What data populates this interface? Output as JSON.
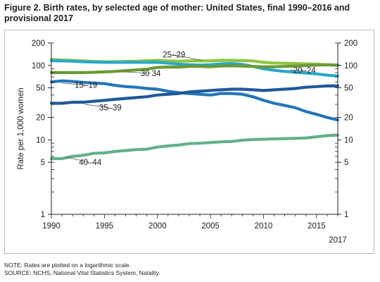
{
  "figure": {
    "title": "Figure 2. Birth rates, by selected age of mother: United States, final 1990–2016 and provisional 2017",
    "notes": [
      "NOTE: Rates are plotted on a logarithmic scale.",
      "SOURCE: NCHS, National Vital Statistics System, Natality."
    ]
  },
  "chart_data": {
    "type": "line",
    "title": "Figure 2. Birth rates, by selected age of mother: United States, final 1990–2016 and provisional 2017",
    "ylabel": "Rate per 1,000 women",
    "xlabel": "",
    "yscale": "log",
    "ylim": [
      1,
      200
    ],
    "xlim": [
      1990,
      2017
    ],
    "x_ticks": [
      "1990",
      "1995",
      "2000",
      "2005",
      "2010",
      "2015"
    ],
    "x_extra_tick": "2017",
    "y_ticks": [
      "1",
      "5",
      "10",
      "20",
      "50",
      "100",
      "200"
    ],
    "y_tick_values": [
      1,
      5,
      10,
      20,
      50,
      100,
      200
    ],
    "grid": false,
    "legend": "inline labels",
    "x": [
      1990,
      1991,
      1992,
      1993,
      1994,
      1995,
      1996,
      1997,
      1998,
      1999,
      2000,
      2001,
      2002,
      2003,
      2004,
      2005,
      2006,
      2007,
      2008,
      2009,
      2010,
      2011,
      2012,
      2013,
      2014,
      2015,
      2016,
      2017
    ],
    "series": [
      {
        "name": "25–29",
        "color": "#8cc63f",
        "label_year": 2000.5,
        "label_value": 128,
        "pointer_to": [
          2004.2,
          117
        ],
        "values": [
          120,
          118,
          117,
          115,
          113,
          112,
          112,
          113,
          114,
          116,
          117,
          115,
          114,
          115,
          115,
          115,
          117,
          117,
          116,
          115,
          110,
          108,
          107,
          106,
          105,
          104,
          102,
          100
        ]
      },
      {
        "name": "20–24",
        "color": "#2aa7c9",
        "label_year": 2012.8,
        "label_value": 79,
        "pointer_to": [
          2012.5,
          86
        ],
        "values": [
          116,
          115,
          114,
          112,
          111,
          110,
          110,
          110,
          110,
          110,
          110,
          107,
          104,
          102,
          101,
          102,
          105,
          106,
          103,
          97,
          90,
          86,
          83,
          81,
          79,
          77,
          74,
          72
        ]
      },
      {
        "name": "30 34",
        "color": "#6a9a34",
        "label_year": 1998.4,
        "label_value": 72,
        "pointer_to": [
          1996.7,
          82
        ],
        "values": [
          80,
          80,
          80,
          80,
          81,
          82,
          83,
          85,
          87,
          89,
          94,
          95,
          95,
          97,
          97,
          96,
          98,
          99,
          98,
          97,
          96,
          96,
          97,
          98,
          100,
          101,
          102,
          101
        ]
      },
      {
        "name": "15–19",
        "color": "#2476b8",
        "label_year": 1992.2,
        "label_value": 50,
        "pointer_to": [
          1990.9,
          58
        ],
        "values": [
          60,
          62,
          61,
          59,
          58,
          57,
          54,
          52,
          51,
          49,
          48,
          45,
          43,
          42,
          41,
          40,
          42,
          42,
          41,
          38,
          34,
          31,
          29,
          27,
          24,
          22,
          20,
          18.5
        ]
      },
      {
        "name": "35–39",
        "color": "#21589a",
        "label_year": 1994.5,
        "label_value": 25,
        "pointer_to": [
          1993.1,
          30
        ],
        "values": [
          31,
          31,
          32,
          32,
          33,
          34,
          35,
          36,
          37,
          38,
          40,
          41,
          42,
          44,
          45,
          46,
          47,
          48,
          48,
          47,
          46,
          47,
          48,
          49,
          51,
          52,
          53,
          53
        ]
      },
      {
        "name": "40–44",
        "color": "#64b08a",
        "label_year": 1992.6,
        "label_value": 4.6,
        "pointer_to": [
          1991.3,
          5.9
        ],
        "values": [
          5.6,
          5.6,
          6.0,
          6.2,
          6.6,
          6.7,
          7.0,
          7.2,
          7.4,
          7.5,
          8.0,
          8.3,
          8.5,
          8.9,
          9.0,
          9.2,
          9.4,
          9.5,
          9.9,
          10.1,
          10.2,
          10.3,
          10.4,
          10.5,
          10.6,
          11.0,
          11.4,
          11.6
        ]
      }
    ]
  }
}
